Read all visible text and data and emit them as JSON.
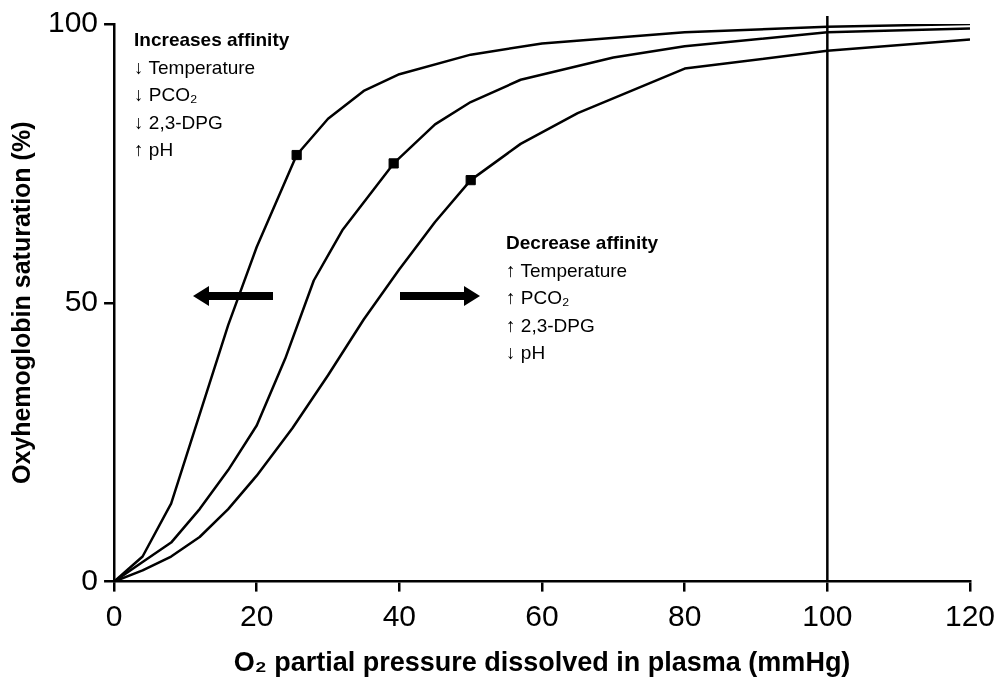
{
  "chart_data": {
    "type": "line",
    "xlabel": "O₂ partial pressure dissolved in plasma (mmHg)",
    "ylabel": "Oxyhemoglobin saturation (%)",
    "xlim": [
      0,
      120
    ],
    "xticks": [
      0,
      20,
      40,
      60,
      80,
      100,
      120
    ],
    "ylim": [
      0,
      100
    ],
    "yticks": [
      0,
      50,
      100
    ],
    "grid": false,
    "legend": false,
    "marker": "none",
    "line_style": "solid",
    "series": [
      {
        "color": "#000000",
        "x": [
          0,
          4,
          8,
          12,
          16,
          20,
          25.6,
          30,
          35,
          40,
          50,
          60,
          80,
          100,
          120
        ],
        "values": [
          0,
          4.5,
          14,
          30,
          46,
          60,
          76.5,
          83,
          88,
          91,
          94.5,
          96.5,
          98.5,
          99.5,
          100
        ]
      },
      {
        "color": "#000000",
        "x": [
          0,
          4,
          8,
          12,
          16,
          20,
          24,
          28,
          32,
          39.2,
          45,
          50,
          57,
          70,
          80,
          100,
          120
        ],
        "values": [
          0,
          3.5,
          7,
          13,
          20,
          28,
          40,
          54,
          63,
          75,
          82,
          86,
          90,
          94,
          96,
          98.5,
          99.2
        ]
      },
      {
        "color": "#000000",
        "x": [
          0,
          4,
          8,
          12,
          16,
          20,
          25,
          30,
          35,
          40,
          45,
          50,
          57,
          65,
          80,
          100,
          120
        ],
        "values": [
          0,
          2,
          4.5,
          8,
          13,
          19,
          27.5,
          37,
          47,
          56,
          64.5,
          72,
          78.5,
          84,
          92,
          95.2,
          97.2
        ]
      },
      {
        "type": "scatter",
        "marker": "square",
        "color": "#000000",
        "x": [
          25.6,
          39.2,
          50
        ],
        "values": [
          76.5,
          75,
          72
        ]
      }
    ],
    "ref_lines": [
      {
        "axis": "x",
        "value": 100,
        "color": "#000000"
      }
    ],
    "annotations": [
      "Increases affinity",
      "↓ Temperature",
      "↓ PCO₂",
      "↓ 2,3-DPG",
      "↑ pH",
      "Decrease affinity",
      "↑ Temperature",
      "↑ PCO₂",
      "↑ 2,3-DPG",
      "↓ pH"
    ]
  }
}
